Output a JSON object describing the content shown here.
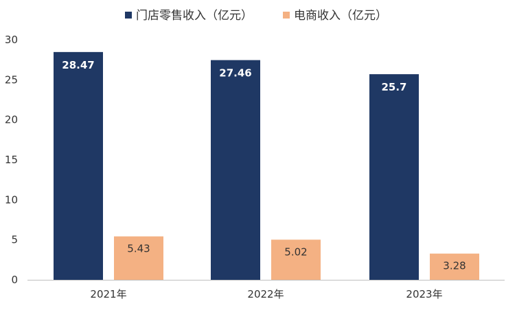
{
  "chart_data": {
    "type": "bar",
    "categories": [
      "2021年",
      "2022年",
      "2023年"
    ],
    "series": [
      {
        "name": "门店零售收入（亿元）",
        "color": "#1f3864",
        "values": [
          28.47,
          27.46,
          25.7
        ]
      },
      {
        "name": "电商收入（亿元）",
        "color": "#f4b183",
        "values": [
          5.43,
          5.02,
          3.28
        ]
      }
    ],
    "ylim": [
      0,
      30
    ],
    "yticks": [
      0,
      5,
      10,
      15,
      20,
      25,
      30
    ],
    "grid": false,
    "legend_position": "top"
  }
}
